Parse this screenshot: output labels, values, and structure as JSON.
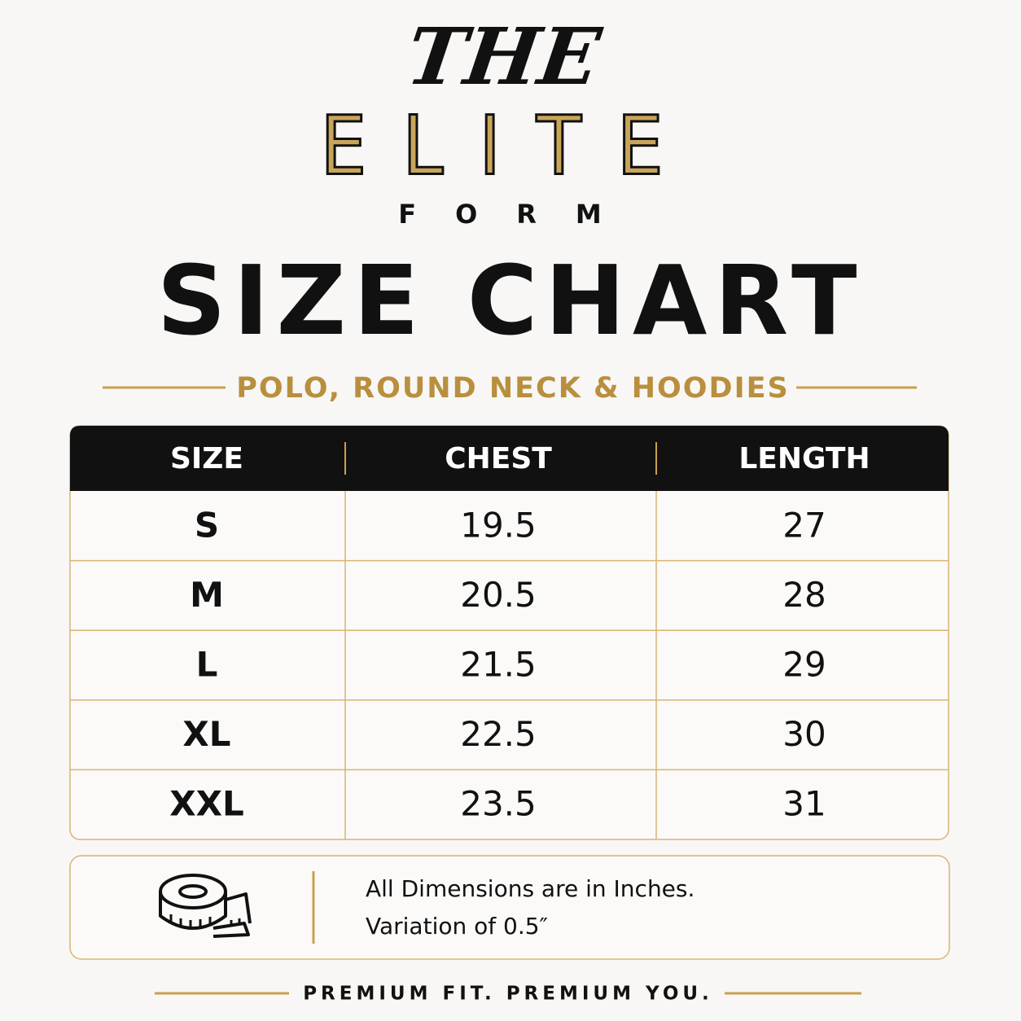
{
  "brand": {
    "top": "THE",
    "middle": "ELITE",
    "bottom": "FORM"
  },
  "title": "SIZE CHART",
  "subtitle": "POLO, ROUND NECK & HOODIES",
  "table": {
    "header": [
      "SIZE",
      "CHEST",
      "LENGTH"
    ],
    "rows": [
      [
        "S",
        "19.5",
        "27"
      ],
      [
        "M",
        "20.5",
        "28"
      ],
      [
        "L",
        "21.5",
        "29"
      ],
      [
        "XL",
        "22.5",
        "30"
      ],
      [
        "XXL",
        "23.5",
        "31"
      ]
    ]
  },
  "note": {
    "lines": [
      "All Dimensions are in Inches.",
      "Variation of 0.5″"
    ]
  },
  "footer": "PREMIUM FIT. PREMIUM YOU."
}
